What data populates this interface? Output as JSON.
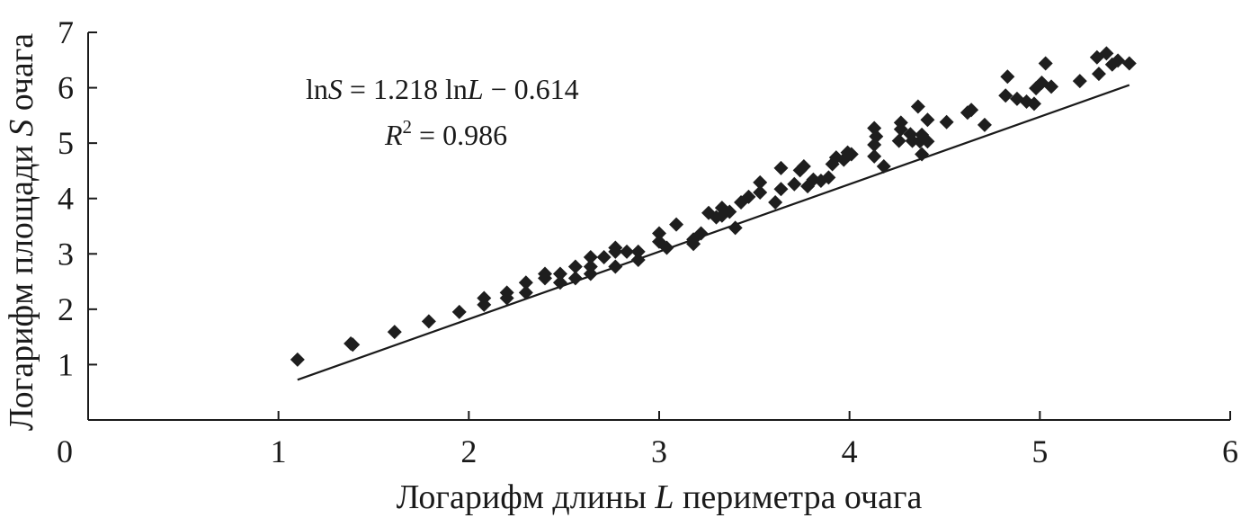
{
  "chart_data": {
    "type": "scatter",
    "xlabel_parts": [
      "Логарифм длины ",
      "L",
      " периметра очага"
    ],
    "ylabel_parts": [
      "Логарифм площади ",
      "S",
      " очага"
    ],
    "xlim": [
      0,
      6
    ],
    "ylim": [
      0,
      7
    ],
    "x_ticks": [
      "0",
      "1",
      "2",
      "3",
      "4",
      "5",
      "6"
    ],
    "y_ticks": [
      "1",
      "2",
      "3",
      "4",
      "5",
      "6",
      "7"
    ],
    "equation_parts": [
      "ln",
      "S",
      " = 1.218 ln",
      "L",
      " − 0.614"
    ],
    "r2_parts": [
      "R",
      "2",
      " = 0.986"
    ],
    "trendline": {
      "slope": 1.218,
      "intercept": -0.614,
      "x_range": [
        1.1,
        5.47
      ]
    },
    "grid": false,
    "legend": "none",
    "point_color": "#1e1e1e",
    "points": [
      [
        1.1,
        1.09
      ],
      [
        1.38,
        1.38
      ],
      [
        1.39,
        1.36
      ],
      [
        1.61,
        1.59
      ],
      [
        1.79,
        1.78
      ],
      [
        1.95,
        1.95
      ],
      [
        2.08,
        2.08
      ],
      [
        2.08,
        2.2
      ],
      [
        2.2,
        2.2
      ],
      [
        2.2,
        2.3
      ],
      [
        2.3,
        2.3
      ],
      [
        2.3,
        2.48
      ],
      [
        2.4,
        2.56
      ],
      [
        2.4,
        2.64
      ],
      [
        2.48,
        2.48
      ],
      [
        2.48,
        2.64
      ],
      [
        2.56,
        2.56
      ],
      [
        2.56,
        2.77
      ],
      [
        2.64,
        2.64
      ],
      [
        2.64,
        2.77
      ],
      [
        2.64,
        2.94
      ],
      [
        2.71,
        2.94
      ],
      [
        2.77,
        2.77
      ],
      [
        2.77,
        3.04
      ],
      [
        2.77,
        3.11
      ],
      [
        2.83,
        3.04
      ],
      [
        2.89,
        2.89
      ],
      [
        2.89,
        3.04
      ],
      [
        3.0,
        3.22
      ],
      [
        3.0,
        3.37
      ],
      [
        3.04,
        3.11
      ],
      [
        3.09,
        3.53
      ],
      [
        3.18,
        3.18
      ],
      [
        3.18,
        3.26
      ],
      [
        3.22,
        3.37
      ],
      [
        3.26,
        3.74
      ],
      [
        3.3,
        3.66
      ],
      [
        3.33,
        3.69
      ],
      [
        3.33,
        3.83
      ],
      [
        3.37,
        3.76
      ],
      [
        3.4,
        3.47
      ],
      [
        3.43,
        3.93
      ],
      [
        3.47,
        4.03
      ],
      [
        3.53,
        4.11
      ],
      [
        3.53,
        4.29
      ],
      [
        3.61,
        3.93
      ],
      [
        3.64,
        4.17
      ],
      [
        3.64,
        4.55
      ],
      [
        3.71,
        4.26
      ],
      [
        3.74,
        4.51
      ],
      [
        3.76,
        4.58
      ],
      [
        3.78,
        4.22
      ],
      [
        3.81,
        4.34
      ],
      [
        3.85,
        4.32
      ],
      [
        3.89,
        4.38
      ],
      [
        3.91,
        4.62
      ],
      [
        3.93,
        4.74
      ],
      [
        3.97,
        4.7
      ],
      [
        3.99,
        4.83
      ],
      [
        4.01,
        4.8
      ],
      [
        4.13,
        4.76
      ],
      [
        4.13,
        4.97
      ],
      [
        4.13,
        5.27
      ],
      [
        4.14,
        5.12
      ],
      [
        4.18,
        4.58
      ],
      [
        4.26,
        5.04
      ],
      [
        4.27,
        5.25
      ],
      [
        4.27,
        5.37
      ],
      [
        4.32,
        5.16
      ],
      [
        4.33,
        5.04
      ],
      [
        4.36,
        5.66
      ],
      [
        4.37,
        5.03
      ],
      [
        4.38,
        4.8
      ],
      [
        4.38,
        5.15
      ],
      [
        4.41,
        5.03
      ],
      [
        4.41,
        5.42
      ],
      [
        4.51,
        5.38
      ],
      [
        4.62,
        5.55
      ],
      [
        4.64,
        5.6
      ],
      [
        4.71,
        5.33
      ],
      [
        4.82,
        5.86
      ],
      [
        4.83,
        6.2
      ],
      [
        4.88,
        5.8
      ],
      [
        4.93,
        5.75
      ],
      [
        4.97,
        5.71
      ],
      [
        4.98,
        5.99
      ],
      [
        5.01,
        6.09
      ],
      [
        5.03,
        6.44
      ],
      [
        5.06,
        6.02
      ],
      [
        5.21,
        6.12
      ],
      [
        5.3,
        6.55
      ],
      [
        5.31,
        6.25
      ],
      [
        5.35,
        6.62
      ],
      [
        5.38,
        6.42
      ],
      [
        5.41,
        6.49
      ],
      [
        5.47,
        6.44
      ]
    ]
  }
}
